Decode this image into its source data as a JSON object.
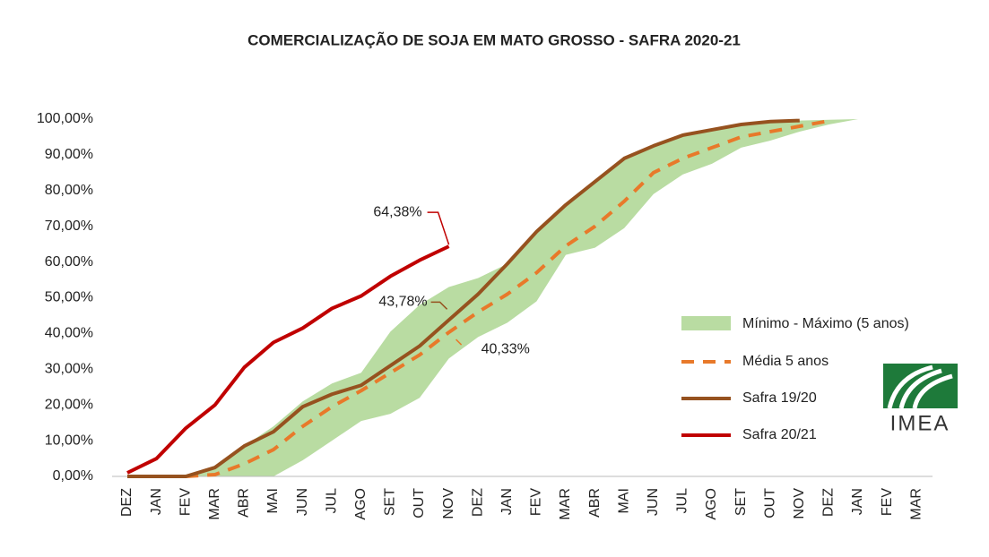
{
  "chart_data": {
    "type": "line",
    "title": "COMERCIALIZAÇÃO DE SOJA EM MATO GROSSO - SAFRA 2020-21",
    "categories": [
      "DEZ",
      "JAN",
      "FEV",
      "MAR",
      "ABR",
      "MAI",
      "JUN",
      "JUL",
      "AGO",
      "SET",
      "OUT",
      "NOV",
      "DEZ",
      "JAN",
      "FEV",
      "MAR",
      "ABR",
      "MAI",
      "JUN",
      "JUL",
      "AGO",
      "SET",
      "OUT",
      "NOV",
      "DEZ",
      "JAN",
      "FEV",
      "MAR"
    ],
    "ylim": [
      0,
      100
    ],
    "yticks": [
      {
        "value": 0,
        "label": "0,00%"
      },
      {
        "value": 10,
        "label": "10,00%"
      },
      {
        "value": 20,
        "label": "20,00%"
      },
      {
        "value": 30,
        "label": "30,00%"
      },
      {
        "value": 40,
        "label": "40,00%"
      },
      {
        "value": 50,
        "label": "50,00%"
      },
      {
        "value": 60,
        "label": "60,00%"
      },
      {
        "value": 70,
        "label": "70,00%"
      },
      {
        "value": 80,
        "label": "80,00%"
      },
      {
        "value": 90,
        "label": "90,00%"
      },
      {
        "value": 100,
        "label": "100,00%"
      }
    ],
    "band": {
      "name": "Mínimo - Máximo (5 anos)",
      "color": "#b9dca2",
      "low": [
        null,
        null,
        0,
        0,
        0,
        0,
        4.5,
        10,
        15.5,
        17.5,
        22,
        33,
        39,
        43,
        49,
        62,
        64,
        69.5,
        79,
        84.5,
        87.5,
        92,
        94,
        96.5,
        98.5,
        100,
        null,
        null
      ],
      "high": [
        null,
        null,
        0,
        2.5,
        8.5,
        14,
        21,
        26,
        29,
        40.5,
        48,
        53,
        55.5,
        59.5,
        68.5,
        76,
        82.5,
        89,
        92.5,
        95.5,
        97,
        98.5,
        99.3,
        99.6,
        99.8,
        100,
        null,
        null
      ]
    },
    "series": [
      {
        "name": "Média 5 anos",
        "color": "#e8792a",
        "dashed": true,
        "values": [
          null,
          null,
          0,
          0.5,
          3.5,
          7.5,
          14,
          19.5,
          24,
          29,
          34,
          40.33,
          46,
          51,
          57,
          64.5,
          70,
          77,
          85,
          89,
          92,
          95,
          96.5,
          98,
          99.5,
          null,
          null,
          null
        ],
        "value_labels": [
          null,
          null,
          null,
          null,
          null,
          null,
          null,
          null,
          null,
          null,
          null,
          "40,33%",
          null,
          null,
          null,
          null,
          null,
          null,
          null,
          null,
          null,
          null,
          null,
          null,
          null,
          null,
          null,
          null
        ]
      },
      {
        "name": "Safra 19/20",
        "color": "#96521f",
        "values": [
          0,
          0,
          0,
          2.5,
          8.5,
          12.5,
          19.5,
          23,
          25.5,
          31,
          36.5,
          43.78,
          51,
          59.5,
          68.5,
          76,
          82.5,
          89,
          92.5,
          95.5,
          97,
          98.5,
          99.3,
          99.6,
          null,
          null,
          null,
          null
        ],
        "value_labels": [
          null,
          null,
          null,
          null,
          null,
          null,
          null,
          null,
          null,
          null,
          null,
          "43,78%",
          null,
          null,
          null,
          null,
          null,
          null,
          null,
          null,
          null,
          null,
          null,
          null,
          null,
          null,
          null,
          null
        ]
      },
      {
        "name": "Safra 20/21",
        "color": "#c00000",
        "values": [
          1,
          5,
          13.5,
          20,
          30.5,
          37.5,
          41.5,
          47,
          50.5,
          56,
          60.5,
          64.38,
          null,
          null,
          null,
          null,
          null,
          null,
          null,
          null,
          null,
          null,
          null,
          null,
          null,
          null,
          null,
          null
        ],
        "value_labels": [
          null,
          null,
          null,
          null,
          null,
          null,
          null,
          null,
          null,
          null,
          null,
          "64,38%",
          null,
          null,
          null,
          null,
          null,
          null,
          null,
          null,
          null,
          null,
          null,
          null,
          null,
          null,
          null,
          null
        ]
      }
    ]
  },
  "logo": "IMEA"
}
